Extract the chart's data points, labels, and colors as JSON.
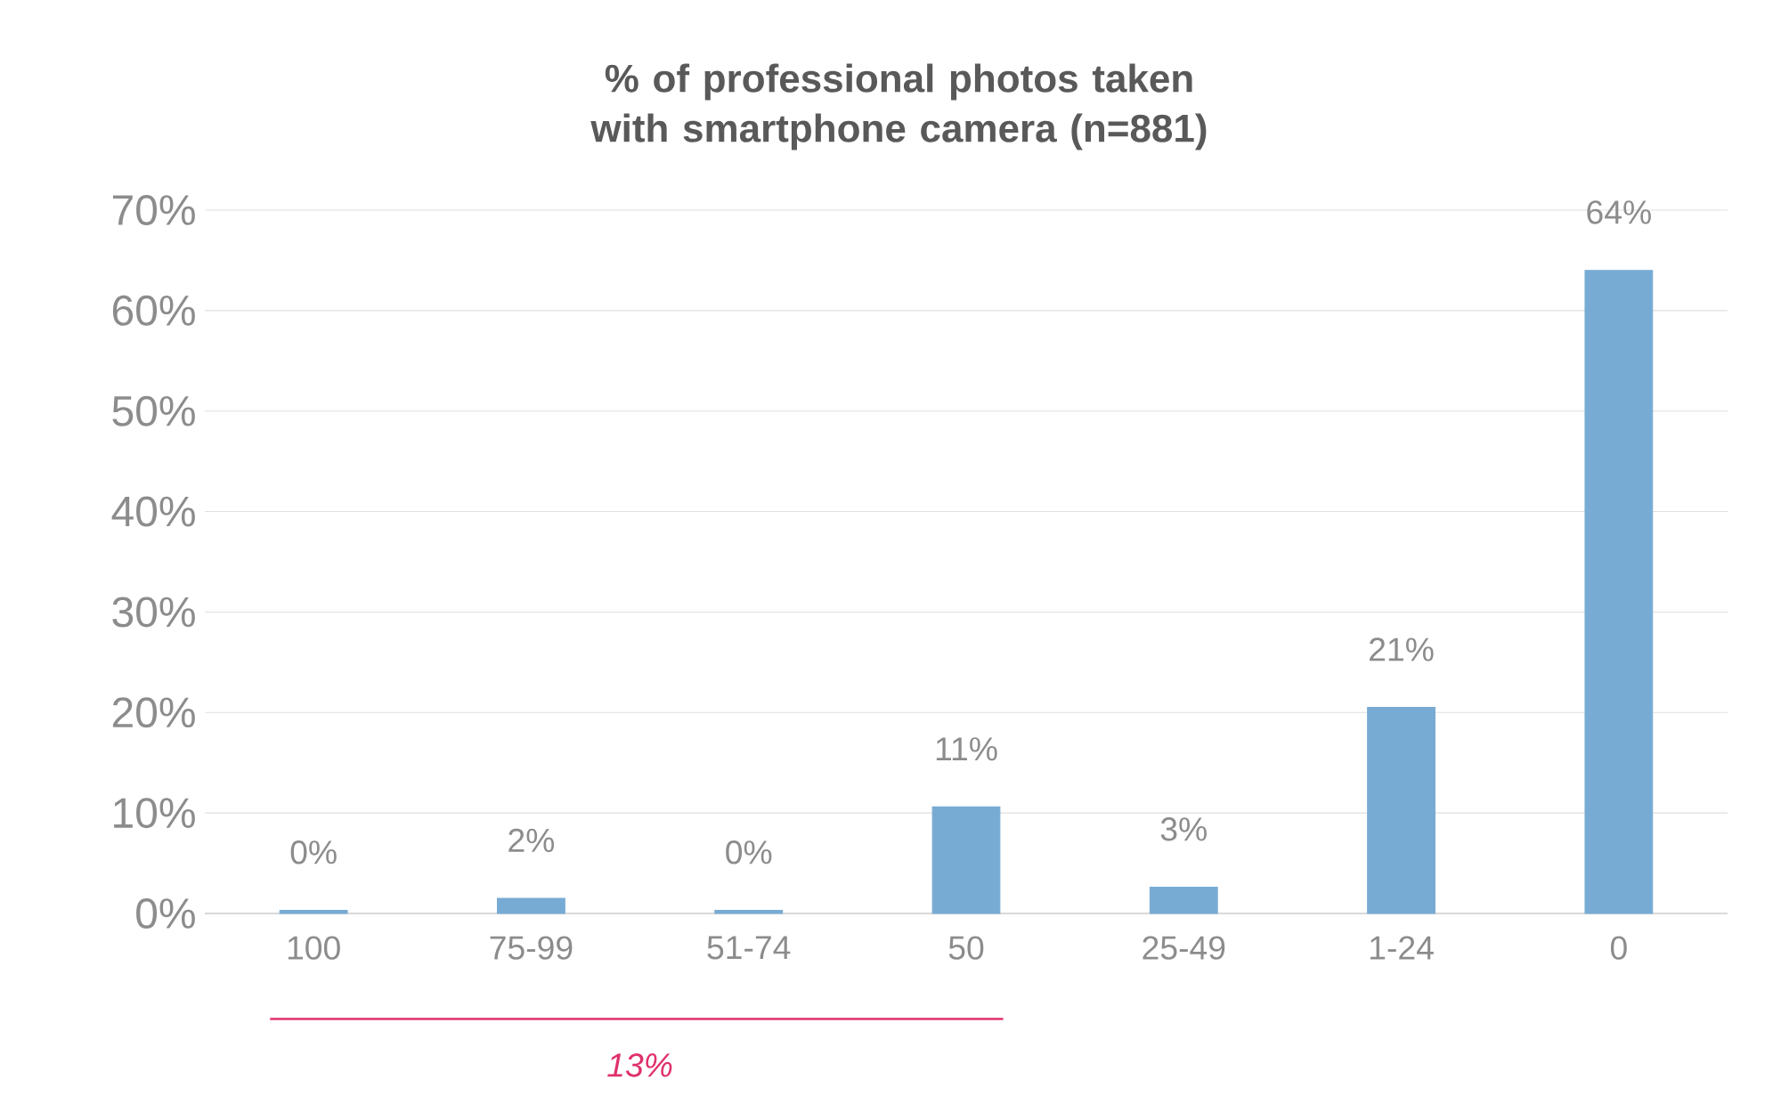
{
  "chart_data": {
    "type": "bar",
    "title": "% of professional photos taken with smartphone camera (n=881)",
    "categories": [
      "100",
      "75-99",
      "51-74",
      "50",
      "25-49",
      "1-24",
      "0"
    ],
    "values": [
      0.3,
      1.5,
      0.3,
      10.6,
      2.6,
      20.5,
      64
    ],
    "value_labels": [
      "0%",
      "2%",
      "0%",
      "11%",
      "3%",
      "21%",
      "64%"
    ],
    "color": "#78abd4",
    "ylim": [
      0,
      70
    ],
    "yticks": [
      {
        "value": 0,
        "label": "0%"
      },
      {
        "value": 10,
        "label": "10%"
      },
      {
        "value": 20,
        "label": "20%"
      },
      {
        "value": 30,
        "label": "30%"
      },
      {
        "value": 40,
        "label": "40%"
      },
      {
        "value": 50,
        "label": "50%"
      },
      {
        "value": 60,
        "label": "60%"
      },
      {
        "value": 70,
        "label": "70%"
      }
    ],
    "grid": "y",
    "annotations": [
      "13%"
    ]
  }
}
